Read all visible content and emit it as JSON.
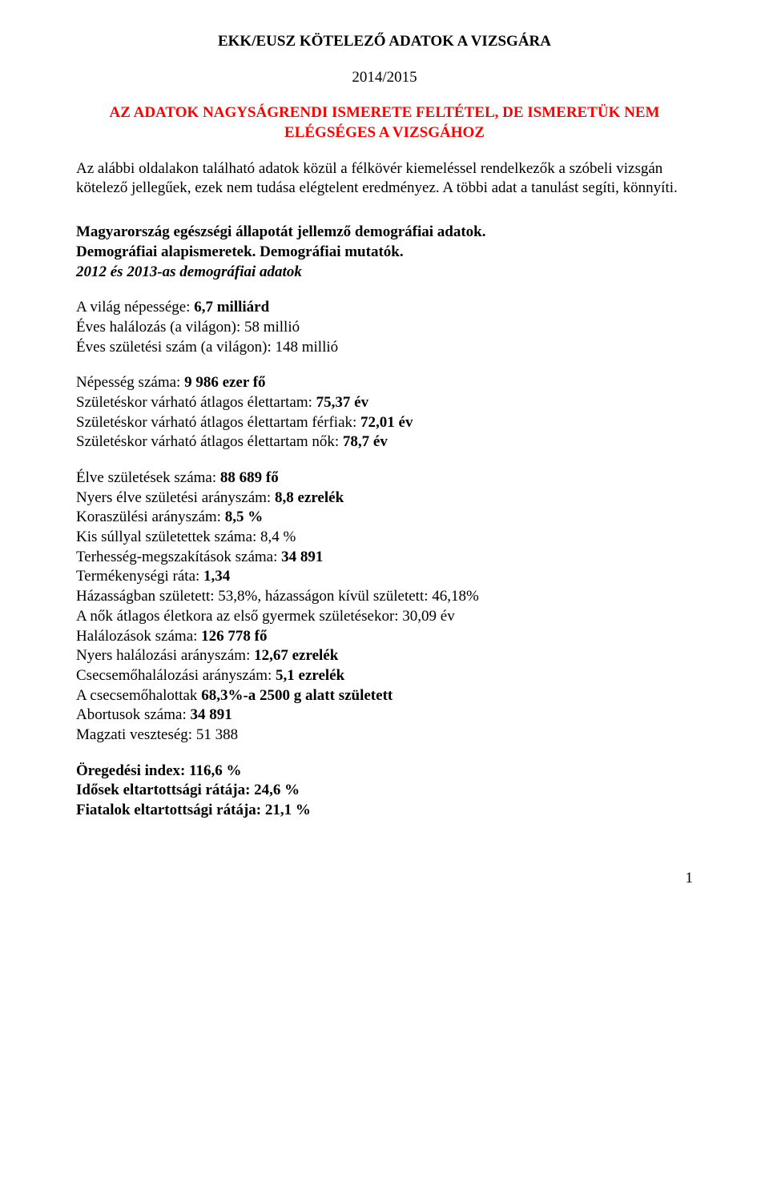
{
  "title": "EKK/EUSZ KÖTELEZŐ ADATOK A VIZSGÁRA",
  "year": "2014/2015",
  "subtitle_line1": "AZ ADATOK NAGYSÁGRENDI ISMERETE FELTÉTEL, DE ISMERETÜK NEM",
  "subtitle_line2": "ELÉGSÉGES  A VIZSGÁHOZ",
  "intro": "Az alábbi oldalakon található adatok közül a félkövér kiemeléssel rendelkezők a szóbeli vizsgán kötelező jellegűek, ezek nem tudása elégtelent eredményez. A többi adat a tanulást segíti, könnyíti.",
  "heading1": "Magyarország egészségi állapotát jellemző demográfiai adatok.",
  "heading2": "Demográfiai alapismeretek. Demográfiai mutatók.",
  "heading3": "2012 és 2013-as demográfiai adatok",
  "world": {
    "pop_label": "A világ népessége: ",
    "pop_value": "6,7 milliárd",
    "deaths": "Éves halálozás (a világon): 58 millió",
    "births": "Éves születési szám (a világon): 148 millió"
  },
  "hungary_pop": {
    "pop_label": "Népesség száma: ",
    "pop_value": "9 986 ezer fő",
    "life_all_label": "Születéskor várható átlagos élettartam: ",
    "life_all_value": "75,37 év",
    "life_male_label": "Születéskor várható átlagos élettartam férfiak: ",
    "life_male_value": "72,01 év",
    "life_female_label": "Születéskor várható átlagos élettartam nők: ",
    "life_female_value": "78,7 év"
  },
  "births_block": {
    "live_births_label": "Élve születések száma: ",
    "live_births_value": "88 689 fő",
    "crude_birth_label": "Nyers élve születési arányszám: ",
    "crude_birth_value": "8,8 ezrelék",
    "premature_label": "Koraszülési arányszám: ",
    "premature_value": "8,5 %",
    "low_weight": "Kis súllyal születettek száma: 8,4 %",
    "abortions_label": "Terhesség-megszakítások száma: ",
    "abortions_value": "34 891",
    "fertility_label": "Termékenységi ráta: ",
    "fertility_value": "1,34",
    "marriage": "Házasságban született: 53,8%, házasságon kívül született: 46,18%",
    "first_child": "A nők átlagos életkora az első gyermek születésekor: 30,09 év",
    "deaths_label": "Halálozások száma: ",
    "deaths_value": "126 778 fő",
    "crude_death_label": "Nyers halálozási arányszám: ",
    "crude_death_value": "12,67 ezrelék",
    "infant_death_label": "Csecsemőhalálozási arányszám: ",
    "infant_death_value": "5,1 ezrelék",
    "infant_weight_pre": "A csecsemőhalottak ",
    "infant_weight_value": "68,3%-a 2500 g alatt született",
    "abortus_label": "Abortusok száma: ",
    "abortus_value": "34 891",
    "fetal_loss": "Magzati veszteség: 51 388"
  },
  "aging": {
    "index_label": "Öregedési index: ",
    "index_value": "116,6 %",
    "elderly_label": "Idősek eltartottsági rátája: ",
    "elderly_value": "24,6 %",
    "youth_label": "Fiatalok eltartottsági rátája: ",
    "youth_value": "21,1 %"
  },
  "page_number": "1"
}
